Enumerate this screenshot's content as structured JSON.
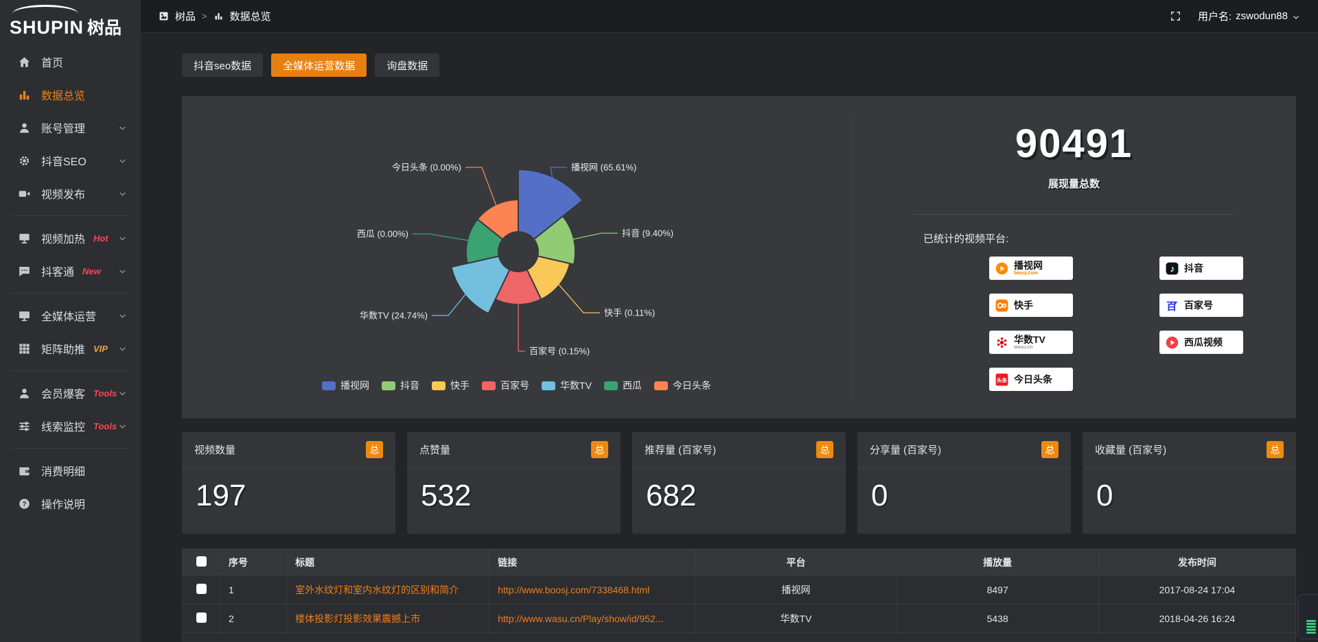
{
  "brand": {
    "logo_en": "SHUPIN",
    "logo_cn": "树品"
  },
  "topbar": {
    "breadcrumb": {
      "root": "树品",
      "separator": ">",
      "current": "数据总览"
    },
    "user_label": "用户名:",
    "username": "zswodun88"
  },
  "sidebar": {
    "groups": [
      {
        "items": [
          {
            "label": "首页",
            "icon": "home"
          },
          {
            "label": "数据总览",
            "icon": "chart",
            "active": true
          },
          {
            "label": "账号管理",
            "icon": "user",
            "chevron": true
          },
          {
            "label": "抖音SEO",
            "icon": "gear",
            "chevron": true
          },
          {
            "label": "视频发布",
            "icon": "video",
            "chevron": true
          }
        ]
      },
      {
        "items": [
          {
            "label": "视频加热",
            "icon": "screen",
            "badge": "Hot",
            "badge_color": "#ff4455",
            "chevron": true
          },
          {
            "label": "抖客通",
            "icon": "chat",
            "badge": "New",
            "badge_color": "#ff4455",
            "chevron": true
          }
        ]
      },
      {
        "items": [
          {
            "label": "全媒体运营",
            "icon": "monitor",
            "chevron": true
          },
          {
            "label": "矩阵助推",
            "icon": "grid",
            "badge": "VIP",
            "badge_color": "#eda33c",
            "chevron": true
          }
        ]
      },
      {
        "items": [
          {
            "label": "会员爆客",
            "icon": "person",
            "badge": "Tools",
            "badge_color": "#ff4455",
            "chevron": true
          },
          {
            "label": "线索监控",
            "icon": "sliders",
            "badge": "Tools",
            "badge_color": "#ff4455",
            "chevron": true
          }
        ]
      },
      {
        "items": [
          {
            "label": "消费明细",
            "icon": "wallet"
          },
          {
            "label": "操作说明",
            "icon": "help"
          }
        ]
      }
    ]
  },
  "tabs": [
    {
      "label": "抖音seo数据",
      "active": false
    },
    {
      "label": "全媒体运营数据",
      "active": true
    },
    {
      "label": "询盘数据",
      "active": false
    }
  ],
  "chart_data": {
    "type": "pie",
    "subtype": "nightingale-rose",
    "title": "",
    "unit": "%",
    "slices": [
      {
        "name": "播视网",
        "value": 65.61,
        "color": "#5470c6"
      },
      {
        "name": "抖音",
        "value": 9.4,
        "color": "#91cc75"
      },
      {
        "name": "快手",
        "value": 0.11,
        "color": "#fac858"
      },
      {
        "name": "百家号",
        "value": 0.15,
        "color": "#ee6666"
      },
      {
        "name": "华数TV",
        "value": 24.74,
        "color": "#73c0de"
      },
      {
        "name": "西瓜",
        "value": 0.0,
        "color": "#3ba272"
      },
      {
        "name": "今日头条",
        "value": 0.0,
        "color": "#fc8452"
      }
    ],
    "label_format": "{name} ({value}%)",
    "legend_position": "bottom",
    "legend": [
      "播视网",
      "抖音",
      "快手",
      "百家号",
      "华数TV",
      "西瓜",
      "今日头条"
    ]
  },
  "summary": {
    "total": "90491",
    "total_label": "展现量总数",
    "platforms_title": "已统计的视频平台:",
    "platform_columns": [
      [
        {
          "name": "播视网",
          "sub": "boosj.com",
          "sub_color": "#f08300",
          "icon": "play-circle",
          "icon_color": "#ff8a00"
        },
        {
          "name": "快手",
          "icon": "kuaishou",
          "icon_color": "#ff7e00"
        },
        {
          "name": "华数TV",
          "sub": "wasu.cn",
          "sub_color": "#9a9a9a",
          "icon": "burst",
          "icon_color": "#e60012"
        },
        {
          "name": "今日头条",
          "icon": "toutiao",
          "icon_color": "#ed1c24"
        }
      ],
      [
        {
          "name": "抖音",
          "icon": "douyin",
          "icon_color": "#121117"
        },
        {
          "name": "百家号",
          "icon": "baijia",
          "icon_color": "#2932e1"
        },
        {
          "name": "西瓜视频",
          "icon": "play-circle",
          "icon_color": "#f04142"
        }
      ]
    ]
  },
  "stat_cards": [
    {
      "title": "视频数量",
      "badge": "总",
      "value": "197"
    },
    {
      "title": "点赞量",
      "badge": "总",
      "value": "532"
    },
    {
      "title": "推荐量 (百家号)",
      "badge": "总",
      "value": "682"
    },
    {
      "title": "分享量 (百家号)",
      "badge": "总",
      "value": "0"
    },
    {
      "title": "收藏量 (百家号)",
      "badge": "总",
      "value": "0"
    }
  ],
  "table": {
    "headers": [
      "序号",
      "标题",
      "链接",
      "平台",
      "播放量",
      "发布时间"
    ],
    "rows": [
      {
        "index": "1",
        "title": "室外水纹灯和室内水纹灯的区别和简介",
        "link": "http://www.boosj.com/7338468.html",
        "platform": "播视网",
        "plays": "8497",
        "time": "2017-08-24 17:04"
      },
      {
        "index": "2",
        "title": "楼体投影灯投影效果震撼上市",
        "link": "http://www.wasu.cn/Play/show/id/952...",
        "platform": "华数TV",
        "plays": "5438",
        "time": "2018-04-26 16:24"
      }
    ]
  }
}
